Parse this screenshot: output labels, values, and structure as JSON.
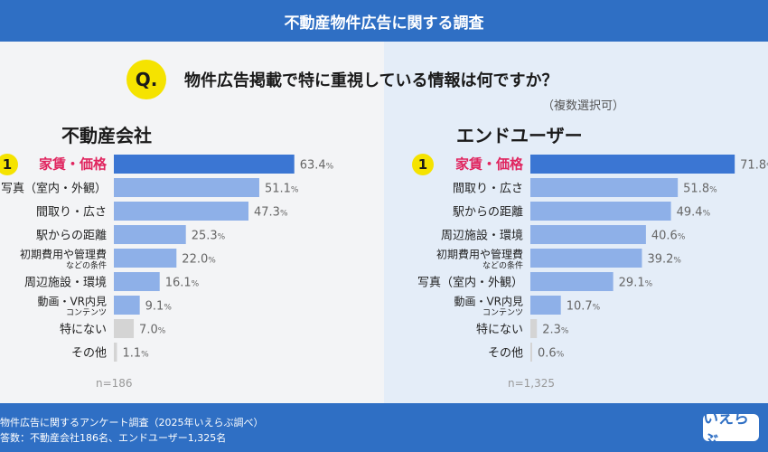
{
  "header": {
    "title": "不動産物件広告に関する調査"
  },
  "question": {
    "badge": "Q.",
    "text": "物件広告掲載で特に重視している情報は何ですか？",
    "note": "（複数選択可）"
  },
  "colors": {
    "bar_top": "#3b76d3",
    "bar_light": "#8eb0e8",
    "bar_dark": "#2f66c4",
    "bar_grey": "#d4d4d4",
    "highlight_label": "#e0245e",
    "badge": "#f5e300"
  },
  "chart_data": [
    {
      "type": "bar",
      "orientation": "horizontal",
      "title": "不動産会社",
      "rank_badge": "1",
      "categories": [
        "家賃・価格",
        "写真（室内・外観）",
        "間取り・広さ",
        "駅からの距離",
        "初期費用や管理費|などの条件",
        "周辺施設・環境",
        "動画・VR内見|コンテンツ",
        "特にない",
        "その他"
      ],
      "values": [
        63.4,
        51.1,
        47.3,
        25.3,
        22.0,
        16.1,
        9.1,
        7.0,
        1.1
      ],
      "value_labels": [
        "63.4",
        "51.1",
        "47.3",
        "25.3",
        "22.0",
        "16.1",
        "9.1",
        "7.0",
        "1.1"
      ],
      "unit": "%",
      "n_label": "n=186",
      "xlim": [
        0,
        100
      ]
    },
    {
      "type": "bar",
      "orientation": "horizontal",
      "title": "エンドユーザー",
      "rank_badge": "1",
      "categories": [
        "家賃・価格",
        "間取り・広さ",
        "駅からの距離",
        "周辺施設・環境",
        "初期費用や管理費|などの条件",
        "写真（室内・外観）",
        "動画・VR内見|コンテンツ",
        "特にない",
        "その他"
      ],
      "values": [
        71.8,
        51.8,
        49.4,
        40.6,
        39.2,
        29.1,
        10.7,
        2.3,
        0.6
      ],
      "value_labels": [
        "71.8",
        "51.8",
        "49.4",
        "40.6",
        "39.2",
        "29.1",
        "10.7",
        "2.3",
        "0.6"
      ],
      "unit": "%",
      "n_label": "n=1,325",
      "xlim": [
        0,
        100
      ]
    }
  ],
  "footer": {
    "line1": "物件広告に関するアンケート調査（2025年いえらぶ調べ）",
    "line2": "答数：不動産会社186名、エンドユーザー1,325名",
    "logo": "いえらぶ"
  }
}
